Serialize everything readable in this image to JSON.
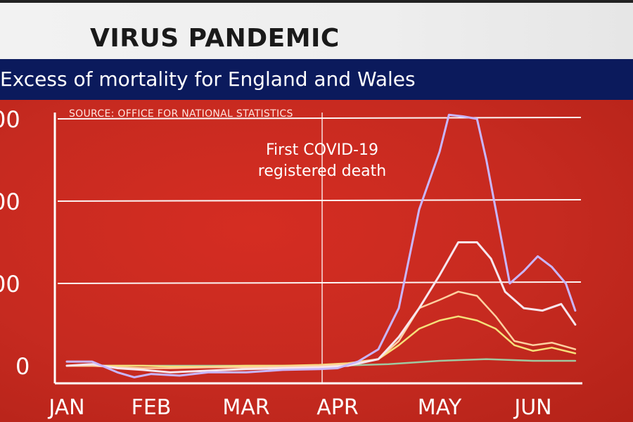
{
  "header": {
    "title": "VIRUS PANDEMIC",
    "subtitle": "Excess of mortality for England and Wales"
  },
  "colors": {
    "background": "#c8281f",
    "title_bar": "#f0f0f0",
    "subtitle_bar": "#0b1a5c",
    "series_1": "#c9b6ff",
    "series_2": "#f6e6ee",
    "series_3": "#ffd0a0",
    "series_4": "#f6e07a",
    "series_5": "#a0c8a0"
  },
  "chart_data": {
    "type": "line",
    "source_note": "SOURCE: OFFICE FOR NATIONAL STATISTICS",
    "annotation": {
      "text_lines": [
        "First COVID-19",
        "registered death"
      ],
      "x": 3.0
    },
    "xlabel": "",
    "ylabel": "",
    "categories": [
      "JAN",
      "FEB",
      "MAR",
      "APR",
      "MAY",
      "JUN"
    ],
    "y_tick_labels": [
      "0",
      "00",
      "00",
      "00"
    ],
    "y_ticks": [
      0,
      100,
      200,
      300
    ],
    "ylim": [
      -15,
      310
    ],
    "xlim": [
      0,
      5.5
    ],
    "grid": true,
    "series": [
      {
        "x": [
          0,
          0.3,
          0.6,
          0.8,
          1.0,
          1.3,
          1.6,
          2.0,
          2.4,
          2.8,
          3.0,
          3.2,
          3.4,
          3.6,
          3.8,
          4.0,
          4.1,
          4.25,
          4.4,
          4.5,
          4.6,
          4.75,
          4.9,
          5.05,
          5.2,
          5.35,
          5.45
        ],
        "y": [
          5,
          5,
          -8,
          -14,
          -10,
          -12,
          -8,
          -8,
          -5,
          -4,
          -3,
          5,
          20,
          70,
          190,
          260,
          305,
          303,
          300,
          250,
          190,
          100,
          115,
          133,
          120,
          100,
          67
        ]
      },
      {
        "x": [
          0,
          0.3,
          0.6,
          0.9,
          1.2,
          1.6,
          2.0,
          2.4,
          2.8,
          3.1,
          3.4,
          3.6,
          3.8,
          4.0,
          4.2,
          4.4,
          4.55,
          4.7,
          4.9,
          5.1,
          5.3,
          5.45
        ],
        "y": [
          0,
          2,
          -3,
          -5,
          -8,
          -6,
          -4,
          -3,
          -2,
          0,
          8,
          35,
          70,
          110,
          150,
          150,
          130,
          90,
          70,
          67,
          75,
          50
        ]
      },
      {
        "x": [
          0,
          0.3,
          0.6,
          0.9,
          1.2,
          1.6,
          2.0,
          2.4,
          2.8,
          3.1,
          3.4,
          3.6,
          3.8,
          4.0,
          4.2,
          4.4,
          4.6,
          4.8,
          5.0,
          5.2,
          5.45
        ],
        "y": [
          0,
          0,
          -2,
          -3,
          -3,
          -2,
          -2,
          -1,
          0,
          2,
          8,
          30,
          70,
          80,
          90,
          85,
          60,
          30,
          25,
          28,
          20
        ]
      },
      {
        "x": [
          0,
          0.3,
          0.6,
          0.9,
          1.2,
          1.6,
          2.0,
          2.4,
          2.8,
          3.1,
          3.4,
          3.6,
          3.8,
          4.0,
          4.2,
          4.4,
          4.6,
          4.8,
          5.0,
          5.2,
          5.45
        ],
        "y": [
          0,
          0,
          0,
          0,
          -1,
          -1,
          0,
          0,
          1,
          3,
          8,
          25,
          45,
          55,
          60,
          55,
          45,
          25,
          18,
          22,
          15
        ]
      },
      {
        "x": [
          0,
          0.5,
          1.0,
          1.5,
          2.0,
          2.5,
          3.0,
          3.5,
          4.0,
          4.5,
          5.0,
          5.45
        ],
        "y": [
          0,
          0,
          0,
          0,
          0,
          0,
          0,
          2,
          6,
          8,
          6,
          6
        ]
      }
    ]
  }
}
